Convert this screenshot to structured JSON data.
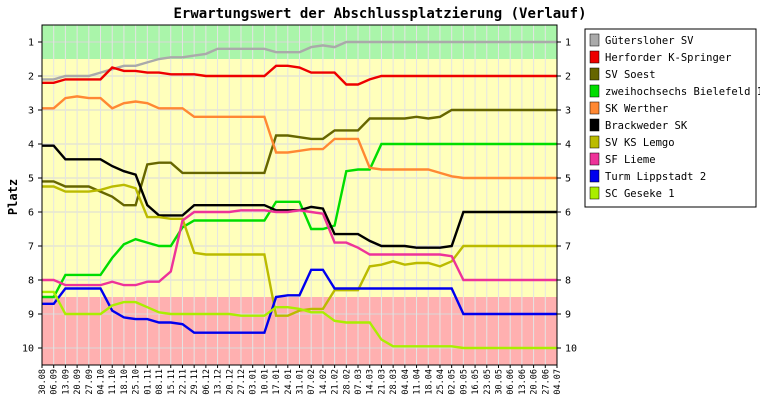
{
  "chart_data": {
    "type": "line",
    "title": "Erwartungswert der Abschlussplatzierung (Verlauf)",
    "ylabel": "Platz",
    "xlabel": "",
    "ylim": [
      0.5,
      10.5
    ],
    "y_inverted": true,
    "y_ticks": [
      "1",
      "2",
      "3",
      "4",
      "5",
      "6",
      "7",
      "8",
      "9",
      "10"
    ],
    "legend_position": "right",
    "x": [
      "30.08",
      "06.09",
      "13.09",
      "20.09",
      "27.09",
      "04.10",
      "11.10",
      "18.10",
      "25.10",
      "01.11",
      "08.11",
      "15.11",
      "22.11",
      "29.11",
      "06.12",
      "13.12",
      "20.12",
      "27.12",
      "03.01",
      "10.01",
      "17.01",
      "24.01",
      "31.01",
      "07.02",
      "14.02",
      "21.02",
      "28.02",
      "07.03",
      "14.03",
      "21.03",
      "28.03",
      "04.04",
      "11.04",
      "18.04",
      "25.04",
      "02.05",
      "09.05",
      "16.05",
      "23.05",
      "30.05",
      "06.06",
      "13.06",
      "20.06",
      "27.06",
      "04.07"
    ],
    "bands": [
      {
        "y_from": 0.5,
        "y_to": 1.5,
        "color": "#aaf5aa"
      },
      {
        "y_from": 1.5,
        "y_to": 8.5,
        "color": "#ffffbb"
      },
      {
        "y_from": 8.5,
        "y_to": 10.5,
        "color": "#ffb0b0"
      }
    ],
    "series": [
      {
        "name": "Gütersloher SV",
        "color": "#aaaaaa",
        "values": [
          2.1,
          2.1,
          2.0,
          2.0,
          2.0,
          1.9,
          1.8,
          1.7,
          1.7,
          1.6,
          1.5,
          1.45,
          1.45,
          1.4,
          1.35,
          1.2,
          1.2,
          1.2,
          1.2,
          1.2,
          1.3,
          1.3,
          1.3,
          1.15,
          1.1,
          1.15,
          1.0,
          1.0,
          1.0,
          1.0,
          1.0,
          1.0,
          1.0,
          1.0,
          1.0,
          1.0,
          1.0,
          1.0,
          1.0,
          1.0,
          1.0,
          1.0,
          1.0,
          1.0,
          1.0
        ]
      },
      {
        "name": "Herforder K-Springer",
        "color": "#ee0000",
        "values": [
          2.2,
          2.2,
          2.1,
          2.1,
          2.1,
          2.1,
          1.75,
          1.85,
          1.85,
          1.9,
          1.9,
          1.95,
          1.95,
          1.95,
          2.0,
          2.0,
          2.0,
          2.0,
          2.0,
          2.0,
          1.7,
          1.7,
          1.75,
          1.9,
          1.9,
          1.9,
          2.25,
          2.25,
          2.1,
          2.0,
          2.0,
          2.0,
          2.0,
          2.0,
          2.0,
          2.0,
          2.0,
          2.0,
          2.0,
          2.0,
          2.0,
          2.0,
          2.0,
          2.0,
          2.0
        ]
      },
      {
        "name": "SV Soest",
        "color": "#666600",
        "values": [
          5.1,
          5.1,
          5.25,
          5.25,
          5.25,
          5.4,
          5.55,
          5.8,
          5.8,
          4.6,
          4.55,
          4.55,
          4.85,
          4.85,
          4.85,
          4.85,
          4.85,
          4.85,
          4.85,
          4.85,
          3.75,
          3.75,
          3.8,
          3.85,
          3.85,
          3.6,
          3.6,
          3.6,
          3.25,
          3.25,
          3.25,
          3.25,
          3.2,
          3.25,
          3.2,
          3.0,
          3.0,
          3.0,
          3.0,
          3.0,
          3.0,
          3.0,
          3.0,
          3.0,
          3.0
        ]
      },
      {
        "name": "zweihochsechs Bielefeld 1",
        "color": "#00dd00",
        "values": [
          8.5,
          8.5,
          7.85,
          7.85,
          7.85,
          7.85,
          7.35,
          6.95,
          6.8,
          6.9,
          7.0,
          7.0,
          6.45,
          6.25,
          6.25,
          6.25,
          6.25,
          6.25,
          6.25,
          6.25,
          5.7,
          5.7,
          5.7,
          6.5,
          6.5,
          6.4,
          4.8,
          4.75,
          4.75,
          4.0,
          4.0,
          4.0,
          4.0,
          4.0,
          4.0,
          4.0,
          4.0,
          4.0,
          4.0,
          4.0,
          4.0,
          4.0,
          4.0,
          4.0,
          4.0
        ]
      },
      {
        "name": "SK Werther",
        "color": "#ff8833",
        "values": [
          2.95,
          2.95,
          2.65,
          2.6,
          2.65,
          2.65,
          2.95,
          2.8,
          2.75,
          2.8,
          2.95,
          2.95,
          2.95,
          3.2,
          3.2,
          3.2,
          3.2,
          3.2,
          3.2,
          3.2,
          4.25,
          4.25,
          4.2,
          4.15,
          4.15,
          3.85,
          3.85,
          3.85,
          4.7,
          4.75,
          4.75,
          4.75,
          4.75,
          4.75,
          4.85,
          4.95,
          5.0,
          5.0,
          5.0,
          5.0,
          5.0,
          5.0,
          5.0,
          5.0,
          5.0
        ]
      },
      {
        "name": "Brackweder SK",
        "color": "#000000",
        "values": [
          4.05,
          4.05,
          4.45,
          4.45,
          4.45,
          4.45,
          4.65,
          4.8,
          4.9,
          5.8,
          6.1,
          6.1,
          6.1,
          5.8,
          5.8,
          5.8,
          5.8,
          5.8,
          5.8,
          5.8,
          5.95,
          5.95,
          5.95,
          5.85,
          5.9,
          6.65,
          6.65,
          6.65,
          6.85,
          7.0,
          7.0,
          7.0,
          7.05,
          7.05,
          7.05,
          7.0,
          6.0,
          6.0,
          6.0,
          6.0,
          6.0,
          6.0,
          6.0,
          6.0,
          6.0
        ]
      },
      {
        "name": "SV KS Lemgo",
        "color": "#bbbb00",
        "values": [
          5.25,
          5.25,
          5.4,
          5.4,
          5.4,
          5.35,
          5.25,
          5.2,
          5.3,
          6.15,
          6.15,
          6.2,
          6.2,
          7.2,
          7.25,
          7.25,
          7.25,
          7.25,
          7.25,
          7.25,
          9.05,
          9.05,
          8.9,
          8.85,
          8.85,
          8.3,
          8.3,
          8.3,
          7.6,
          7.55,
          7.45,
          7.55,
          7.5,
          7.5,
          7.6,
          7.45,
          7.0,
          7.0,
          7.0,
          7.0,
          7.0,
          7.0,
          7.0,
          7.0,
          7.0
        ]
      },
      {
        "name": "SF Lieme",
        "color": "#ee3399",
        "values": [
          8.0,
          8.0,
          8.15,
          8.15,
          8.15,
          8.15,
          8.05,
          8.15,
          8.15,
          8.05,
          8.05,
          7.75,
          6.25,
          6.0,
          6.0,
          6.0,
          6.0,
          5.95,
          5.95,
          5.95,
          6.0,
          6.0,
          5.95,
          6.0,
          6.05,
          6.9,
          6.9,
          7.05,
          7.25,
          7.25,
          7.25,
          7.25,
          7.25,
          7.25,
          7.25,
          7.3,
          8.0,
          8.0,
          8.0,
          8.0,
          8.0,
          8.0,
          8.0,
          8.0,
          8.0
        ]
      },
      {
        "name": "Turm Lippstadt 2",
        "color": "#0000ee",
        "values": [
          8.7,
          8.7,
          8.25,
          8.25,
          8.25,
          8.25,
          8.9,
          9.1,
          9.15,
          9.15,
          9.25,
          9.25,
          9.3,
          9.55,
          9.55,
          9.55,
          9.55,
          9.55,
          9.55,
          9.55,
          8.5,
          8.45,
          8.45,
          7.7,
          7.7,
          8.25,
          8.25,
          8.25,
          8.25,
          8.25,
          8.25,
          8.25,
          8.25,
          8.25,
          8.25,
          8.25,
          9.0,
          9.0,
          9.0,
          9.0,
          9.0,
          9.0,
          9.0,
          9.0,
          9.0
        ]
      },
      {
        "name": "SC Geseke 1",
        "color": "#aaee00",
        "values": [
          8.35,
          8.35,
          9.0,
          9.0,
          9.0,
          9.0,
          8.75,
          8.65,
          8.65,
          8.8,
          8.95,
          9.0,
          9.0,
          9.0,
          9.0,
          9.0,
          9.0,
          9.05,
          9.05,
          9.05,
          8.8,
          8.8,
          8.85,
          8.95,
          8.95,
          9.2,
          9.25,
          9.25,
          9.25,
          9.75,
          9.95,
          9.95,
          9.95,
          9.95,
          9.95,
          9.95,
          10.0,
          10.0,
          10.0,
          10.0,
          10.0,
          10.0,
          10.0,
          10.0,
          10.0
        ]
      }
    ]
  }
}
